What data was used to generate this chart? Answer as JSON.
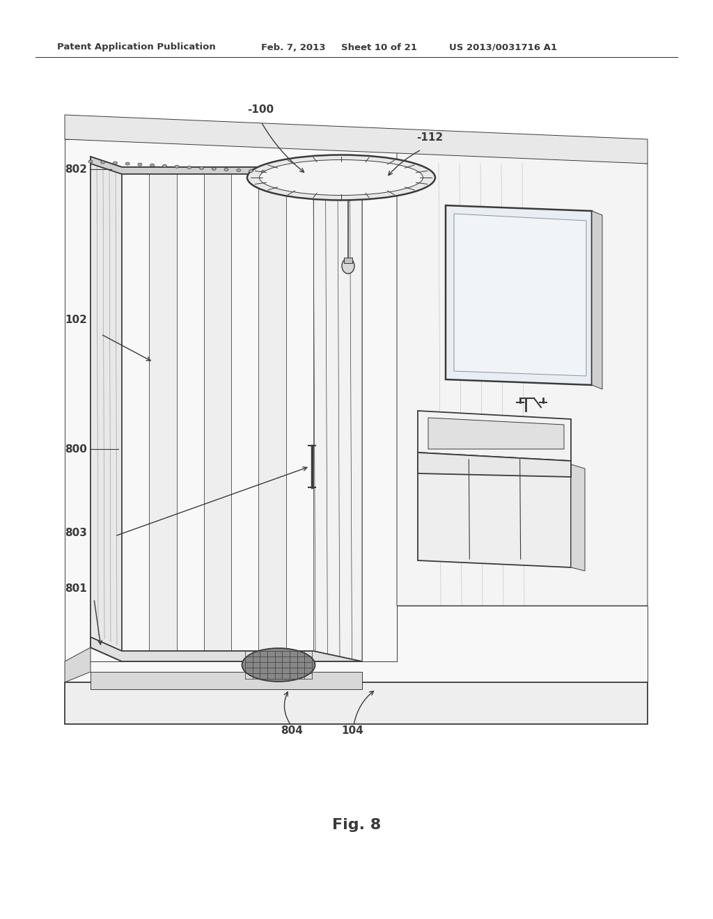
{
  "bg_color": "#ffffff",
  "header_text": "Patent Application Publication",
  "header_date": "Feb. 7, 2013",
  "header_sheet": "Sheet 10 of 21",
  "header_patent": "US 2013/0031716 A1",
  "figure_label": "Fig. 8",
  "line_color": "#3a3a3a",
  "fill_white": "#ffffff",
  "fill_light": "#f0f0f0",
  "fill_med": "#e0e0e0",
  "fill_dark": "#c8c8c8"
}
